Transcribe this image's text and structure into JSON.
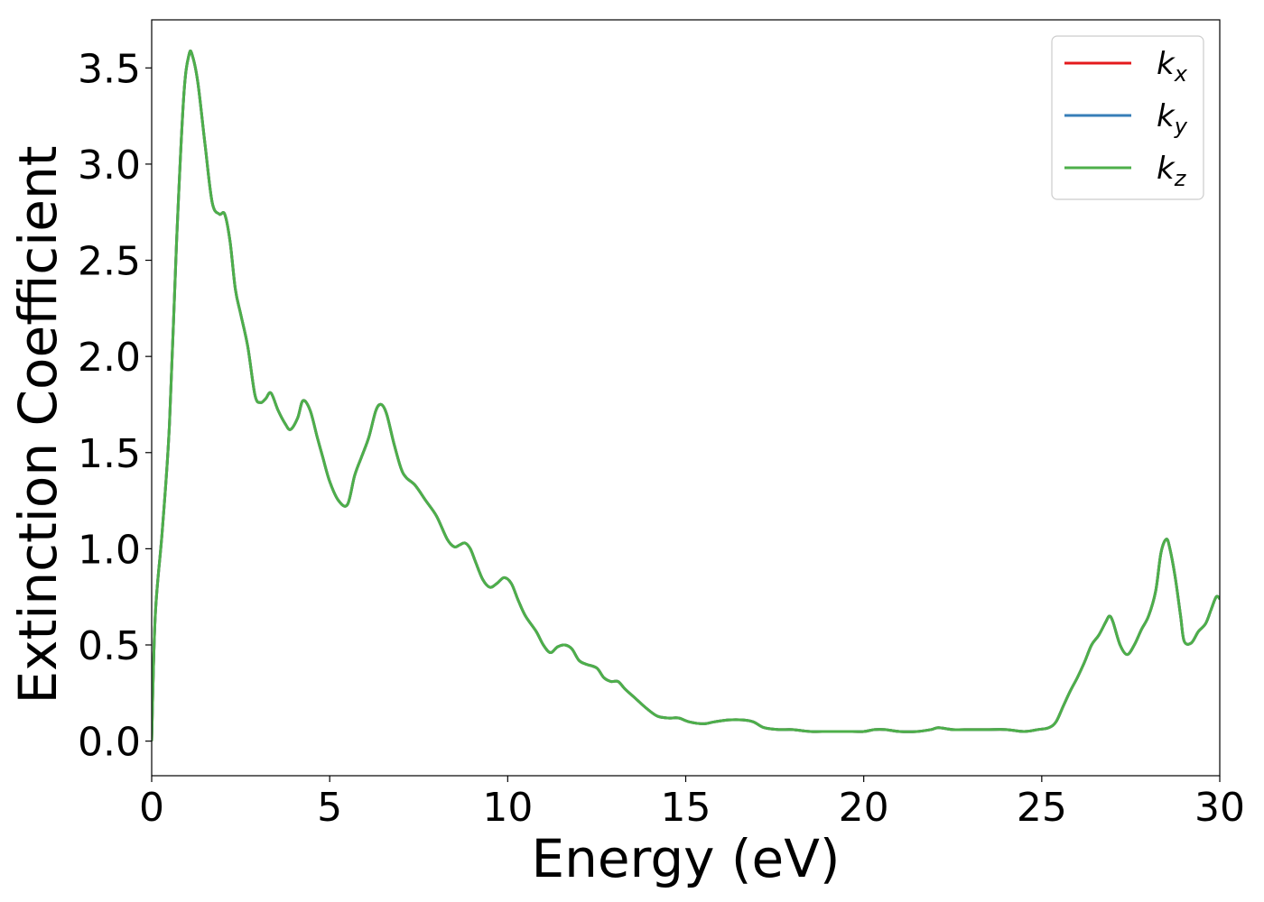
{
  "chart_data": {
    "type": "line",
    "xlabel": "Energy (eV)",
    "ylabel": "Extinction Coefficient",
    "xlim": [
      0,
      30
    ],
    "ylim": [
      -0.18,
      3.75
    ],
    "x_ticks": [
      0,
      5,
      10,
      15,
      20,
      25,
      30
    ],
    "y_ticks": [
      0.0,
      0.5,
      1.0,
      1.5,
      2.0,
      2.5,
      3.0,
      3.5
    ],
    "x_tick_labels": [
      "0",
      "5",
      "10",
      "15",
      "20",
      "25",
      "30"
    ],
    "y_tick_labels": [
      "0.0",
      "0.5",
      "1.0",
      "1.5",
      "2.0",
      "2.5",
      "3.0",
      "3.5"
    ],
    "grid": false,
    "legend": {
      "placement": "top-right"
    },
    "series": [
      {
        "name": "kx",
        "base": "k",
        "sub": "x",
        "color": "#e41a1c",
        "shares_values_with": "kz"
      },
      {
        "name": "ky",
        "base": "k",
        "sub": "y",
        "color": "#377eb8",
        "shares_values_with": "kz"
      },
      {
        "name": "kz",
        "base": "k",
        "sub": "z",
        "color": "#4daf4a"
      }
    ],
    "x": [
      0,
      0.1,
      0.3,
      0.5,
      0.7,
      0.9,
      1.05,
      1.15,
      1.3,
      1.5,
      1.7,
      1.9,
      2.05,
      2.2,
      2.35,
      2.5,
      2.7,
      2.9,
      3.05,
      3.2,
      3.35,
      3.55,
      3.75,
      3.9,
      4.1,
      4.25,
      4.45,
      4.65,
      4.8,
      5.0,
      5.25,
      5.5,
      5.7,
      5.9,
      6.1,
      6.3,
      6.45,
      6.6,
      6.8,
      7.0,
      7.15,
      7.4,
      7.7,
      8.0,
      8.3,
      8.5,
      8.65,
      8.8,
      8.95,
      9.1,
      9.3,
      9.5,
      9.7,
      9.9,
      10.1,
      10.3,
      10.5,
      10.8,
      11.0,
      11.2,
      11.4,
      11.6,
      11.8,
      12.0,
      12.2,
      12.5,
      12.7,
      12.9,
      13.1,
      13.3,
      13.6,
      13.9,
      14.2,
      14.5,
      14.8,
      15.1,
      15.5,
      15.8,
      16.2,
      16.6,
      16.9,
      17.2,
      17.6,
      18.0,
      18.5,
      19.0,
      19.5,
      20.0,
      20.3,
      20.6,
      21.0,
      21.5,
      21.9,
      22.1,
      22.5,
      23.0,
      23.5,
      24.0,
      24.5,
      24.9,
      25.2,
      25.4,
      25.6,
      25.8,
      26.0,
      26.2,
      26.4,
      26.6,
      26.8,
      26.9,
      27.0,
      27.2,
      27.4,
      27.6,
      27.8,
      28.0,
      28.2,
      28.35,
      28.5,
      28.6,
      28.75,
      28.9,
      29.0,
      29.2,
      29.4,
      29.6,
      29.75,
      29.9,
      30.0
    ],
    "values": [
      0.0,
      0.65,
      1.1,
      1.65,
      2.6,
      3.35,
      3.57,
      3.56,
      3.42,
      3.1,
      2.8,
      2.74,
      2.74,
      2.6,
      2.35,
      2.22,
      2.05,
      1.8,
      1.76,
      1.78,
      1.81,
      1.72,
      1.65,
      1.62,
      1.68,
      1.77,
      1.72,
      1.58,
      1.48,
      1.35,
      1.25,
      1.23,
      1.38,
      1.48,
      1.58,
      1.72,
      1.75,
      1.7,
      1.55,
      1.42,
      1.37,
      1.33,
      1.25,
      1.17,
      1.05,
      1.01,
      1.02,
      1.03,
      1.0,
      0.93,
      0.84,
      0.8,
      0.82,
      0.85,
      0.82,
      0.73,
      0.65,
      0.57,
      0.5,
      0.46,
      0.49,
      0.5,
      0.48,
      0.42,
      0.4,
      0.38,
      0.33,
      0.31,
      0.31,
      0.27,
      0.22,
      0.17,
      0.13,
      0.12,
      0.12,
      0.1,
      0.09,
      0.1,
      0.11,
      0.11,
      0.1,
      0.07,
      0.06,
      0.06,
      0.05,
      0.05,
      0.05,
      0.05,
      0.06,
      0.06,
      0.05,
      0.05,
      0.06,
      0.07,
      0.06,
      0.06,
      0.06,
      0.06,
      0.05,
      0.06,
      0.07,
      0.1,
      0.18,
      0.26,
      0.33,
      0.41,
      0.5,
      0.55,
      0.62,
      0.65,
      0.62,
      0.5,
      0.45,
      0.5,
      0.58,
      0.65,
      0.78,
      0.98,
      1.05,
      1.0,
      0.85,
      0.65,
      0.52,
      0.51,
      0.57,
      0.61,
      0.68,
      0.75,
      0.74
    ]
  }
}
